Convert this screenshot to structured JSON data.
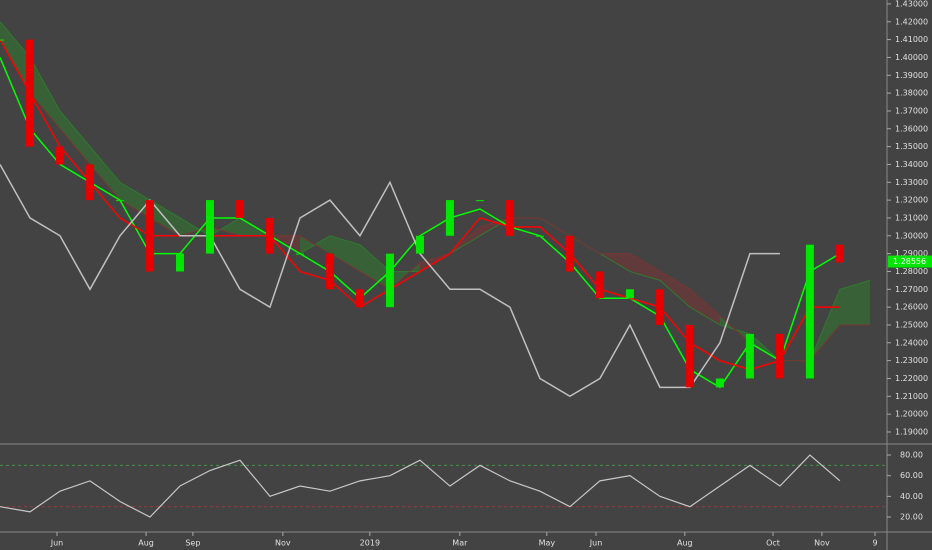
{
  "chart_data": [
    {
      "type": "candlestick",
      "x": [
        0,
        1,
        2,
        3,
        4,
        5,
        6,
        7,
        8,
        9,
        10,
        11,
        12,
        13,
        14,
        15,
        16,
        17,
        18,
        19,
        20,
        21,
        22,
        23,
        24,
        25,
        26,
        27,
        28,
        29
      ],
      "xlim": [
        0,
        29.57
      ],
      "xticks": [
        {
          "value": 1.9,
          "label": "Jun"
        },
        {
          "value": 4.87,
          "label": "Aug"
        },
        {
          "value": 6.43,
          "label": "Sep"
        },
        {
          "value": 9.43,
          "label": "Nov"
        },
        {
          "value": 12.33,
          "label": "2019"
        },
        {
          "value": 15.33,
          "label": "Mar"
        },
        {
          "value": 18.23,
          "label": "May"
        },
        {
          "value": 19.87,
          "label": "Jun"
        },
        {
          "value": 22.83,
          "label": "Aug"
        },
        {
          "value": 25.77,
          "label": "Oct"
        },
        {
          "value": 27.4,
          "label": "Nov"
        },
        {
          "value": 29.17,
          "label": "9"
        }
      ],
      "ylim": [
        1.1855,
        1.4322
      ],
      "yticks": [
        {
          "value": 1.19,
          "label": "1.19000"
        },
        {
          "value": 1.2,
          "label": "1.20000"
        },
        {
          "value": 1.21,
          "label": "1.21000"
        },
        {
          "value": 1.22,
          "label": "1.22000"
        },
        {
          "value": 1.23,
          "label": "1.23000"
        },
        {
          "value": 1.24,
          "label": "1.24000"
        },
        {
          "value": 1.25,
          "label": "1.25000"
        },
        {
          "value": 1.26,
          "label": "1.26000"
        },
        {
          "value": 1.27,
          "label": "1.27000"
        },
        {
          "value": 1.28,
          "label": "1.28000"
        },
        {
          "value": 1.29,
          "label": "1.29000"
        },
        {
          "value": 1.3,
          "label": "1.30000"
        },
        {
          "value": 1.31,
          "label": "1.31000"
        },
        {
          "value": 1.32,
          "label": "1.32000"
        },
        {
          "value": 1.33,
          "label": "1.33000"
        },
        {
          "value": 1.34,
          "label": "1.34000"
        },
        {
          "value": 1.35,
          "label": "1.35000"
        },
        {
          "value": 1.36,
          "label": "1.36000"
        },
        {
          "value": 1.37,
          "label": "1.37000"
        },
        {
          "value": 1.38,
          "label": "1.38000"
        },
        {
          "value": 1.39,
          "label": "1.39000"
        },
        {
          "value": 1.4,
          "label": "1.40000"
        },
        {
          "value": 1.41,
          "label": "1.41000"
        },
        {
          "value": 1.42,
          "label": "1.42000"
        },
        {
          "value": 1.43,
          "label": "1.43000"
        }
      ],
      "last_price": 1.28556,
      "last_price_color": "#00e600",
      "close": [
        1.41,
        1.35,
        1.34,
        1.32,
        1.32,
        1.28,
        1.29,
        1.32,
        1.31,
        1.29,
        1.29,
        1.27,
        1.26,
        1.29,
        1.3,
        1.32,
        1.32,
        1.3,
        1.3,
        1.28,
        1.265,
        1.27,
        1.25,
        1.215,
        1.22,
        1.245,
        1.22,
        1.295,
        1.285,
        null
      ],
      "up_color": "#00e600",
      "down_color": "#e60000",
      "lines": [
        {
          "color": "#00ff00",
          "values": [
            1.4,
            1.36,
            1.34,
            1.33,
            1.32,
            1.29,
            1.29,
            1.31,
            1.31,
            1.3,
            1.29,
            1.28,
            1.265,
            1.28,
            1.3,
            1.31,
            1.315,
            1.305,
            1.3,
            1.285,
            1.265,
            1.265,
            1.255,
            1.225,
            1.215,
            1.24,
            1.23,
            1.28,
            1.29,
            null
          ]
        },
        {
          "color": "#ff0000",
          "values": [
            1.41,
            1.38,
            1.35,
            1.33,
            1.31,
            1.3,
            1.3,
            1.3,
            1.3,
            1.3,
            1.28,
            1.275,
            1.26,
            1.27,
            1.28,
            1.29,
            1.31,
            1.305,
            1.305,
            1.29,
            1.27,
            1.265,
            1.26,
            1.24,
            1.23,
            1.225,
            1.23,
            1.26,
            1.26,
            null
          ]
        },
        {
          "color": "#c0c0c0",
          "values": [
            1.34,
            1.31,
            1.3,
            1.27,
            1.3,
            1.32,
            1.3,
            1.3,
            1.27,
            1.26,
            1.31,
            1.32,
            1.3,
            1.33,
            1.29,
            1.27,
            1.27,
            1.26,
            1.22,
            1.21,
            1.22,
            1.25,
            1.215,
            1.215,
            1.24,
            1.29,
            1.29,
            null,
            null,
            null
          ]
        }
      ],
      "cloud": {
        "span_a": [
          1.42,
          1.4,
          1.37,
          1.35,
          1.33,
          1.32,
          1.31,
          1.3,
          1.31,
          1.3,
          1.29,
          1.3,
          1.295,
          1.28,
          1.28,
          1.29,
          1.3,
          1.31,
          1.31,
          1.3,
          1.29,
          1.28,
          1.275,
          1.26,
          1.25,
          1.245,
          1.23,
          1.23,
          1.27,
          1.275
        ],
        "span_b": [
          1.41,
          1.38,
          1.36,
          1.34,
          1.32,
          1.31,
          1.3,
          1.305,
          1.3,
          1.3,
          1.3,
          1.29,
          1.28,
          1.27,
          1.285,
          1.29,
          1.305,
          1.31,
          1.31,
          1.3,
          1.29,
          1.29,
          1.28,
          1.27,
          1.255,
          1.24,
          1.23,
          1.23,
          1.25,
          1.25
        ],
        "up_color": "#2f7a2f",
        "down_color": "#7a3434"
      }
    },
    {
      "type": "line",
      "values": [
        30,
        25,
        45,
        55,
        35,
        20,
        50,
        65,
        75,
        40,
        50,
        45,
        55,
        60,
        75,
        50,
        70,
        55,
        45,
        30,
        55,
        60,
        40,
        30,
        50,
        70,
        50,
        80,
        55,
        null
      ],
      "color": "#c8c8c8",
      "ylim": [
        5.5,
        89.7
      ],
      "yticks": [
        {
          "value": 20,
          "label": "20.00"
        },
        {
          "value": 40,
          "label": "40.00"
        },
        {
          "value": 60,
          "label": "60.00"
        },
        {
          "value": 80,
          "label": "80.00"
        }
      ],
      "levels": [
        {
          "value": 70,
          "color": "#3a9a3a"
        },
        {
          "value": 30,
          "color": "#9a3a3a"
        }
      ]
    }
  ]
}
